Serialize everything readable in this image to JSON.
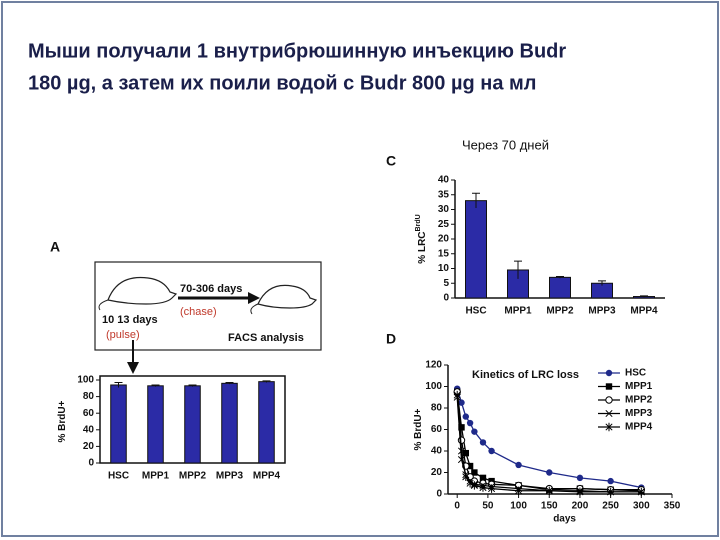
{
  "slide": {
    "title_lines": [
      "Мыши получали 1 внутрибрюшинную инъекцию Budr",
      "180 µg, а затем их поили водой с Budr 800 µg на мл"
    ],
    "note": "Через 70 дней",
    "panel_labels": [
      "A",
      "C",
      "D"
    ],
    "diagram": {
      "chase_days": "70-306 days",
      "chase": "(chase)",
      "pulse_days": "10 13 days",
      "pulse": "(pulse)",
      "analysis": "FACS analysis"
    }
  },
  "chart_data": [
    {
      "type": "bar",
      "y_label": "% BrdU+",
      "categories": [
        "HSC",
        "MPP1",
        "MPP2",
        "MPP3",
        "MPP4"
      ],
      "values": [
        94,
        93,
        93,
        96,
        98
      ],
      "errors": [
        3,
        1,
        1,
        1,
        1
      ],
      "color": "#2b2ba6",
      "ylim": [
        0,
        100
      ],
      "yticks": [
        0,
        20,
        40,
        60,
        80,
        100
      ]
    },
    {
      "type": "bar",
      "y_label": "% LRC",
      "y_label_sup": "BrdU",
      "categories": [
        "HSC",
        "MPP1",
        "MPP2",
        "MPP3",
        "MPP4"
      ],
      "values": [
        33,
        9.5,
        7,
        5,
        0.5
      ],
      "errors": [
        2.5,
        3,
        0.3,
        0.8,
        0.2
      ],
      "color": "#2b2ba6",
      "ylim": [
        0,
        40
      ],
      "yticks": [
        0,
        5,
        10,
        15,
        20,
        25,
        30,
        35,
        40
      ]
    },
    {
      "type": "line",
      "title": "Kinetics of LRC loss",
      "x_label": "days",
      "y_label": "% BrdU+",
      "x": [
        0,
        7,
        14,
        21,
        28,
        42,
        56,
        100,
        150,
        200,
        250,
        300
      ],
      "series": [
        {
          "name": "HSC",
          "color": "#1f2a8a",
          "marker": "circle",
          "values": [
            98,
            85,
            72,
            66,
            58,
            48,
            40,
            27,
            20,
            15,
            12,
            6
          ]
        },
        {
          "name": "MPP1",
          "color": "#000000",
          "marker": "square",
          "values": [
            95,
            62,
            38,
            26,
            20,
            15,
            12,
            8,
            4,
            5,
            4,
            3
          ]
        },
        {
          "name": "MPP2",
          "color": "#000000",
          "marker": "open-circle",
          "values": [
            95,
            50,
            26,
            16,
            12,
            10,
            9,
            8,
            5,
            5,
            4,
            4
          ]
        },
        {
          "name": "MPP3",
          "color": "#000000",
          "marker": "x",
          "values": [
            90,
            32,
            18,
            12,
            9,
            8,
            7,
            5,
            3,
            3,
            2,
            2
          ]
        },
        {
          "name": "MPP4",
          "color": "#000000",
          "marker": "star",
          "values": [
            92,
            40,
            16,
            10,
            8,
            6,
            5,
            3,
            3,
            2,
            2,
            2
          ]
        }
      ],
      "xlim": [
        -15,
        350
      ],
      "xticks": [
        0,
        50,
        100,
        150,
        200,
        250,
        300,
        350
      ],
      "ylim": [
        0,
        120
      ],
      "yticks": [
        0,
        20,
        40,
        60,
        80,
        100,
        120
      ]
    }
  ]
}
